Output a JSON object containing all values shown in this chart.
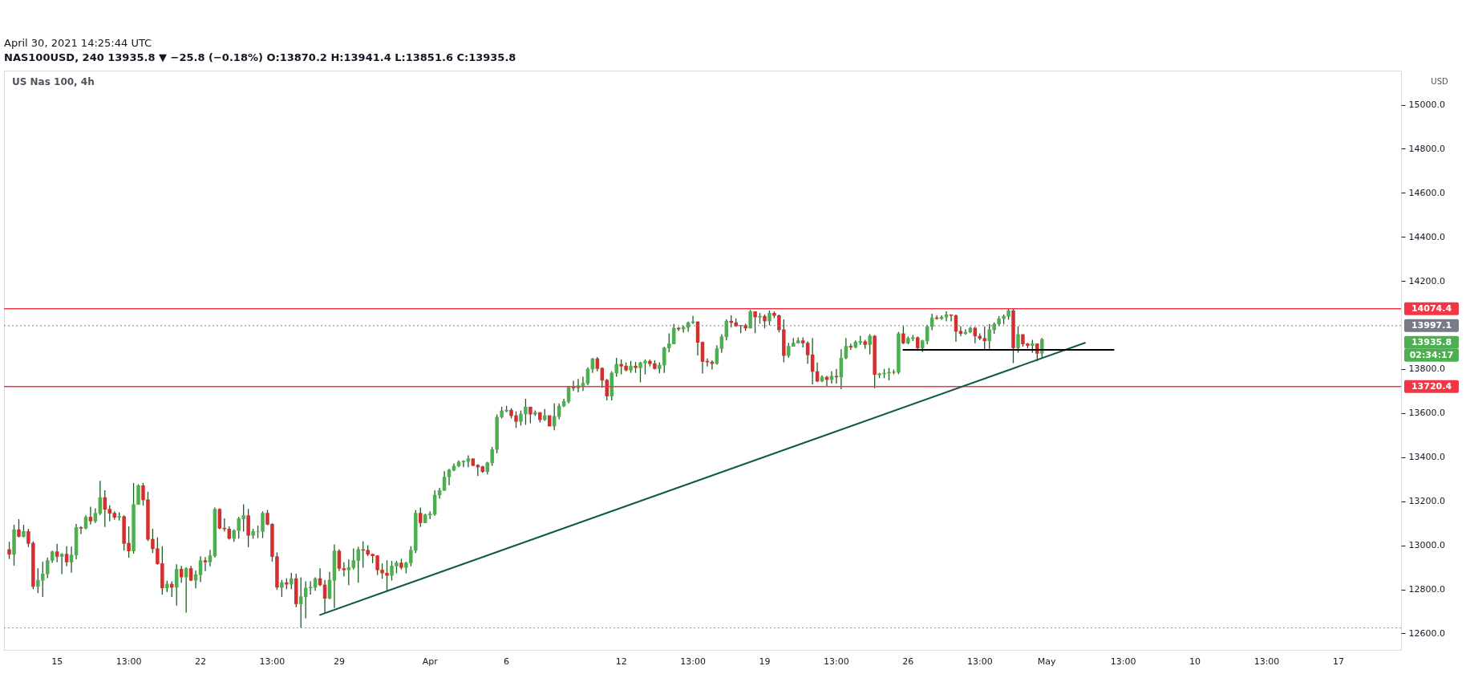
{
  "chart_data": {
    "type": "candlestick",
    "title": "US Nas 100, 4h",
    "ylabel": "USD",
    "annotations": [
      "April 30, 2021 14:25:44 UTC",
      "NAS100USD, 240  13935.8 ▼ −25.8 (−0.18%)  O:13870.2  H:13941.4  L:13851.6  C:13935.8",
      "13935.8",
      "02:34:17"
    ],
    "categories": [
      null,
      null,
      null,
      null,
      null,
      null,
      null,
      null,
      null,
      null,
      "15",
      null,
      null,
      null,
      null,
      null,
      null,
      null,
      null,
      null,
      null,
      null,
      null,
      null,
      null,
      "13:00",
      null,
      null,
      null,
      null,
      null,
      null,
      null,
      null,
      null,
      null,
      null,
      null,
      null,
      null,
      "22",
      null,
      null,
      null,
      null,
      null,
      null,
      null,
      null,
      null,
      null,
      null,
      null,
      null,
      null,
      "13:00",
      null,
      null,
      null,
      null,
      null,
      null,
      null,
      null,
      null,
      null,
      null,
      null,
      null,
      "29",
      null,
      null,
      null,
      null,
      null,
      null,
      null,
      null,
      null,
      null,
      null,
      null,
      null,
      null,
      null,
      null,
      null,
      null,
      "Apr",
      null,
      null,
      null,
      null,
      null,
      null,
      null,
      null,
      null,
      null,
      null,
      null,
      null,
      null,
      null,
      "6",
      null,
      null,
      null,
      null,
      null,
      null,
      null,
      null,
      null,
      null,
      null,
      null,
      null,
      null,
      null,
      null,
      null,
      null,
      null,
      null,
      null,
      null,
      null,
      "12",
      null,
      null,
      null,
      null,
      null,
      null,
      null,
      null,
      null,
      null,
      null,
      null,
      null,
      null,
      "13:00",
      null,
      null,
      null,
      null,
      null,
      null,
      null,
      null,
      null,
      null,
      null,
      null,
      null,
      null,
      "19",
      null,
      null,
      null,
      null,
      null,
      null,
      null,
      null,
      null,
      null,
      null,
      null,
      null,
      null,
      "13:00",
      null,
      null,
      null,
      null,
      null,
      null,
      null,
      null,
      null,
      null,
      null,
      null,
      null,
      null,
      "26",
      null,
      null,
      null,
      null,
      null,
      null,
      null,
      null,
      null,
      null,
      null,
      null,
      null,
      null,
      "13:00",
      null,
      null,
      null,
      null,
      null,
      null,
      null,
      null,
      null,
      null,
      null,
      null,
      null,
      "May",
      null,
      null,
      null,
      null,
      null,
      null,
      null,
      null,
      null,
      null,
      null,
      null,
      null,
      null,
      null,
      "13:00",
      null,
      null,
      null,
      null,
      null,
      null,
      null,
      null,
      null,
      null,
      null,
      null,
      null,
      null,
      "10",
      null,
      null,
      null,
      null,
      null,
      null,
      null,
      null,
      null,
      null,
      null,
      null,
      null,
      null,
      "13:00",
      null,
      null,
      null,
      null,
      null,
      null,
      null,
      null,
      null,
      null,
      null,
      null,
      null,
      null,
      "17",
      null,
      null,
      null,
      null,
      null,
      null,
      null,
      null,
      null,
      null,
      null,
      null
    ],
    "ohlc": [
      [
        12982,
        13016,
        12938,
        12958
      ],
      [
        12958,
        13093,
        12908,
        13072
      ],
      [
        13072,
        13119,
        13036,
        13039
      ],
      [
        13039,
        13093,
        13036,
        13064
      ],
      [
        13064,
        13075,
        12992,
        13007
      ],
      [
        13011,
        13018,
        12801,
        12812
      ],
      [
        12812,
        12896,
        12783,
        12843
      ],
      [
        12840,
        12926,
        12765,
        12871
      ],
      [
        12869,
        12944,
        12851,
        12932
      ],
      [
        12930,
        12976,
        12920,
        12972
      ],
      [
        12972,
        13007,
        12923,
        12948
      ],
      [
        12948,
        12964,
        12869,
        12961
      ],
      [
        12961,
        12996,
        12905,
        12923
      ],
      [
        12923,
        12994,
        12876,
        12957
      ],
      [
        12955,
        13097,
        12937,
        13082
      ],
      [
        13082,
        13087,
        13051,
        13076
      ],
      [
        13076,
        13136,
        13072,
        13129
      ],
      [
        13129,
        13175,
        13094,
        13109
      ],
      [
        13109,
        13168,
        13101,
        13147
      ],
      [
        13144,
        13293,
        13137,
        13218
      ],
      [
        13218,
        13250,
        13083,
        13162
      ],
      [
        13165,
        13182,
        13109,
        13144
      ],
      [
        13147,
        13154,
        13116,
        13126
      ],
      [
        13126,
        13150,
        13112,
        13132
      ],
      [
        13132,
        13136,
        12976,
        13007
      ],
      [
        13011,
        13086,
        12944,
        12973
      ],
      [
        12973,
        13283,
        12962,
        13186
      ],
      [
        13184,
        13277,
        13184,
        13272
      ],
      [
        13272,
        13283,
        13180,
        13205
      ],
      [
        13208,
        13243,
        13019,
        13026
      ],
      [
        13029,
        13075,
        12965,
        12983
      ],
      [
        12986,
        13036,
        12912,
        12915
      ],
      [
        12918,
        12996,
        12776,
        12805
      ],
      [
        12805,
        12839,
        12787,
        12825
      ],
      [
        12825,
        12836,
        12765,
        12808
      ],
      [
        12808,
        12914,
        12726,
        12893
      ],
      [
        12893,
        12907,
        12830,
        12855
      ],
      [
        12855,
        12900,
        12694,
        12896
      ],
      [
        12896,
        12907,
        12837,
        12840
      ],
      [
        12840,
        12886,
        12805,
        12868
      ],
      [
        12865,
        12950,
        12833,
        12932
      ],
      [
        12932,
        12947,
        12883,
        12923
      ],
      [
        12923,
        12979,
        12905,
        12954
      ],
      [
        12951,
        13172,
        12944,
        13165
      ],
      [
        13165,
        13168,
        13073,
        13076
      ],
      [
        13079,
        13122,
        13062,
        13073
      ],
      [
        13075,
        13086,
        13026,
        13030
      ],
      [
        13030,
        13072,
        13016,
        13068
      ],
      [
        13066,
        13129,
        13030,
        13122
      ],
      [
        13119,
        13186,
        13062,
        13136
      ],
      [
        13136,
        13165,
        12991,
        13044
      ],
      [
        13044,
        13075,
        13030,
        13064
      ],
      [
        13062,
        13089,
        13033,
        13064
      ],
      [
        13062,
        13154,
        13033,
        13147
      ],
      [
        13147,
        13161,
        13091,
        13094
      ],
      [
        13097,
        13100,
        12926,
        12948
      ],
      [
        12950,
        12968,
        12797,
        12808
      ],
      [
        12808,
        12843,
        12765,
        12832
      ],
      [
        12832,
        12850,
        12801,
        12822
      ],
      [
        12822,
        12875,
        12801,
        12850
      ],
      [
        12850,
        12871,
        12719,
        12733
      ],
      [
        12733,
        12855,
        12625,
        12768
      ],
      [
        12765,
        12836,
        12669,
        12807
      ],
      [
        12805,
        12836,
        12776,
        12811
      ],
      [
        12808,
        12855,
        12794,
        12850
      ],
      [
        12850,
        12896,
        12815,
        12819
      ],
      [
        12821,
        12843,
        12694,
        12758
      ],
      [
        12758,
        12879,
        12755,
        12843
      ],
      [
        12840,
        13004,
        12715,
        12975
      ],
      [
        12975,
        12982,
        12883,
        12894
      ],
      [
        12896,
        12923,
        12858,
        12887
      ],
      [
        12887,
        12936,
        12819,
        12900
      ],
      [
        12898,
        12986,
        12890,
        12932
      ],
      [
        12930,
        12993,
        12830,
        12982
      ],
      [
        12982,
        13018,
        12898,
        12976
      ],
      [
        12979,
        13000,
        12951,
        12958
      ],
      [
        12961,
        12961,
        12919,
        12951
      ],
      [
        12954,
        12954,
        12865,
        12887
      ],
      [
        12889,
        12918,
        12848,
        12873
      ],
      [
        12875,
        12932,
        12790,
        12862
      ],
      [
        12862,
        12929,
        12840,
        12907
      ],
      [
        12905,
        12929,
        12873,
        12921
      ],
      [
        12921,
        12939,
        12890,
        12898
      ],
      [
        12898,
        12925,
        12873,
        12921
      ],
      [
        12919,
        12996,
        12905,
        12979
      ],
      [
        12976,
        13161,
        12965,
        13147
      ],
      [
        13147,
        13172,
        13083,
        13101
      ],
      [
        13101,
        13143,
        13101,
        13140
      ],
      [
        13136,
        13154,
        13119,
        13143
      ],
      [
        13140,
        13250,
        13134,
        13229
      ],
      [
        13227,
        13261,
        13212,
        13250
      ],
      [
        13248,
        13336,
        13248,
        13311
      ],
      [
        13309,
        13347,
        13273,
        13343
      ],
      [
        13340,
        13372,
        13336,
        13361
      ],
      [
        13359,
        13386,
        13355,
        13379
      ],
      [
        13377,
        13386,
        13355,
        13383
      ],
      [
        13380,
        13408,
        13355,
        13394
      ],
      [
        13394,
        13394,
        13359,
        13361
      ],
      [
        13365,
        13368,
        13315,
        13354
      ],
      [
        13358,
        13361,
        13329,
        13333
      ],
      [
        13333,
        13379,
        13322,
        13376
      ],
      [
        13373,
        13447,
        13361,
        13436
      ],
      [
        13434,
        13594,
        13418,
        13583
      ],
      [
        13581,
        13629,
        13576,
        13612
      ],
      [
        13608,
        13633,
        13604,
        13615
      ],
      [
        13615,
        13622,
        13576,
        13587
      ],
      [
        13590,
        13608,
        13533,
        13561
      ],
      [
        13561,
        13612,
        13544,
        13597
      ],
      [
        13595,
        13665,
        13547,
        13629
      ],
      [
        13629,
        13629,
        13554,
        13594
      ],
      [
        13594,
        13612,
        13587,
        13604
      ],
      [
        13604,
        13604,
        13558,
        13569
      ],
      [
        13569,
        13619,
        13565,
        13590
      ],
      [
        13590,
        13590,
        13540,
        13540
      ],
      [
        13540,
        13644,
        13522,
        13587
      ],
      [
        13583,
        13644,
        13572,
        13633
      ],
      [
        13631,
        13665,
        13628,
        13654
      ],
      [
        13652,
        13722,
        13644,
        13719
      ],
      [
        13719,
        13747,
        13701,
        13713
      ],
      [
        13713,
        13755,
        13694,
        13726
      ],
      [
        13724,
        13765,
        13701,
        13737
      ],
      [
        13734,
        13808,
        13727,
        13801
      ],
      [
        13799,
        13851,
        13783,
        13848
      ],
      [
        13848,
        13855,
        13790,
        13801
      ],
      [
        13805,
        13808,
        13715,
        13748
      ],
      [
        13751,
        13755,
        13658,
        13676
      ],
      [
        13676,
        13790,
        13658,
        13783
      ],
      [
        13781,
        13851,
        13765,
        13823
      ],
      [
        13823,
        13844,
        13776,
        13812
      ],
      [
        13815,
        13830,
        13790,
        13794
      ],
      [
        13794,
        13837,
        13783,
        13815
      ],
      [
        13815,
        13833,
        13783,
        13805
      ],
      [
        13805,
        13833,
        13740,
        13830
      ],
      [
        13827,
        13844,
        13776,
        13837
      ],
      [
        13837,
        13844,
        13812,
        13823
      ],
      [
        13826,
        13840,
        13798,
        13801
      ],
      [
        13801,
        13830,
        13781,
        13819
      ],
      [
        13817,
        13901,
        13783,
        13898
      ],
      [
        13895,
        13962,
        13876,
        13916
      ],
      [
        13913,
        14005,
        13913,
        13987
      ],
      [
        13987,
        13991,
        13973,
        13981
      ],
      [
        13981,
        13998,
        13966,
        13991
      ],
      [
        13988,
        14016,
        13969,
        14012
      ],
      [
        14010,
        14041,
        14005,
        14016
      ],
      [
        14016,
        14016,
        13862,
        13920
      ],
      [
        13923,
        13926,
        13780,
        13833
      ],
      [
        13837,
        13848,
        13812,
        13831
      ],
      [
        13833,
        13840,
        13798,
        13824
      ],
      [
        13824,
        13908,
        13820,
        13894
      ],
      [
        13892,
        13958,
        13874,
        13948
      ],
      [
        13945,
        14026,
        13930,
        14019
      ],
      [
        14019,
        14044,
        13988,
        14010
      ],
      [
        14012,
        14030,
        13992,
        13995
      ],
      [
        13999,
        13999,
        13963,
        13995
      ],
      [
        13999,
        14006,
        13974,
        13985
      ],
      [
        13985,
        14069,
        13985,
        14062
      ],
      [
        14062,
        14062,
        13963,
        14035
      ],
      [
        14035,
        14055,
        14006,
        14041
      ],
      [
        14041,
        14048,
        13985,
        14017
      ],
      [
        14017,
        14066,
        13999,
        14055
      ],
      [
        14055,
        14062,
        14031,
        14042
      ],
      [
        14044,
        14048,
        13967,
        13977
      ],
      [
        13980,
        14026,
        13831,
        13860
      ],
      [
        13860,
        13919,
        13852,
        13905
      ],
      [
        13902,
        13941,
        13902,
        13919
      ],
      [
        13917,
        13944,
        13916,
        13930
      ],
      [
        13930,
        13944,
        13898,
        13917
      ],
      [
        13919,
        13926,
        13824,
        13863
      ],
      [
        13866,
        13941,
        13731,
        13788
      ],
      [
        13790,
        13830,
        13741,
        13744
      ],
      [
        13744,
        13772,
        13741,
        13765
      ],
      [
        13765,
        13769,
        13720,
        13751
      ],
      [
        13751,
        13790,
        13734,
        13769
      ],
      [
        13769,
        13801,
        13734,
        13763
      ],
      [
        13763,
        13890,
        13709,
        13851
      ],
      [
        13849,
        13941,
        13845,
        13905
      ],
      [
        13905,
        13916,
        13887,
        13898
      ],
      [
        13898,
        13930,
        13894,
        13924
      ],
      [
        13920,
        13951,
        13910,
        13927
      ],
      [
        13926,
        13933,
        13892,
        13910
      ],
      [
        13910,
        13958,
        13867,
        13951
      ],
      [
        13951,
        13955,
        13713,
        13774
      ],
      [
        13772,
        13783,
        13759,
        13780
      ],
      [
        13777,
        13801,
        13759,
        13783
      ],
      [
        13781,
        13805,
        13749,
        13787
      ],
      [
        13787,
        13798,
        13776,
        13784
      ],
      [
        13784,
        13969,
        13777,
        13962
      ],
      [
        13962,
        13995,
        13913,
        13917
      ],
      [
        13917,
        13948,
        13913,
        13941
      ],
      [
        13937,
        13955,
        13927,
        13944
      ],
      [
        13944,
        13948,
        13883,
        13895
      ],
      [
        13895,
        13933,
        13877,
        13930
      ],
      [
        13927,
        14001,
        13913,
        13994
      ],
      [
        13992,
        14051,
        13977,
        14034
      ],
      [
        14034,
        14044,
        14024,
        14028
      ],
      [
        14028,
        14044,
        14024,
        14037
      ],
      [
        14035,
        14062,
        14017,
        14048
      ],
      [
        14048,
        14048,
        14017,
        14042
      ],
      [
        14044,
        14048,
        13924,
        13970
      ],
      [
        13973,
        13995,
        13949,
        13960
      ],
      [
        13960,
        13980,
        13956,
        13969
      ],
      [
        13967,
        13992,
        13963,
        13987
      ],
      [
        13987,
        13992,
        13917,
        13949
      ],
      [
        13951,
        13962,
        13931,
        13938
      ],
      [
        13941,
        13994,
        13888,
        13927
      ],
      [
        13927,
        14005,
        13892,
        13980
      ],
      [
        13977,
        14012,
        13960,
        14005
      ],
      [
        14003,
        14041,
        13995,
        14030
      ],
      [
        14028,
        14048,
        14003,
        14041
      ],
      [
        14038,
        14074,
        14024,
        14066
      ],
      [
        14066,
        14073,
        13827,
        13895
      ],
      [
        13895,
        13994,
        13874,
        13958
      ],
      [
        13958,
        13958,
        13902,
        13913
      ],
      [
        13916,
        13919,
        13895,
        13906
      ],
      [
        13906,
        13933,
        13874,
        13916
      ],
      [
        13916,
        13916,
        13835,
        13870
      ],
      [
        13870.2,
        13941.4,
        13851.6,
        13935.8
      ],
      null,
      null,
      null,
      null,
      null,
      null,
      null,
      null,
      null,
      null,
      null,
      null,
      null,
      null,
      null,
      null,
      null,
      null,
      null,
      null,
      null,
      null,
      null,
      null,
      null,
      null,
      null,
      null,
      null,
      null,
      null,
      null,
      null,
      null,
      null,
      null,
      null,
      null,
      null,
      null,
      null,
      null,
      null,
      null,
      null,
      null,
      null,
      null,
      null,
      null,
      null,
      null,
      null,
      null,
      null,
      null,
      null,
      null,
      null,
      null,
      null,
      null,
      null,
      null,
      null,
      null,
      null,
      null,
      null,
      null,
      null,
      null,
      null,
      null
    ],
    "series": [
      {
        "type": "line",
        "color": "#0f5a4a",
        "values": [
          null,
          null,
          null,
          null,
          null,
          null,
          null,
          null,
          null,
          null,
          null,
          null,
          null,
          null,
          null,
          null,
          null,
          null,
          null,
          null,
          null,
          null,
          null,
          null,
          null,
          null,
          null,
          null,
          null,
          null,
          null,
          null,
          null,
          null,
          null,
          null,
          null,
          null,
          null,
          null,
          null,
          null,
          null,
          null,
          null,
          null,
          null,
          null,
          null,
          null,
          null,
          null,
          null,
          null,
          null,
          null,
          null,
          null,
          null,
          null,
          null,
          null,
          null,
          null,
          null,
          12684,
          null,
          null,
          null,
          null,
          null,
          null,
          null,
          null,
          null,
          null,
          null,
          null,
          null,
          null,
          null,
          null,
          null,
          null,
          null,
          null,
          null,
          null,
          null,
          null,
          null,
          null,
          null,
          null,
          null,
          null,
          null,
          null,
          null,
          null,
          null,
          null,
          null,
          null,
          null,
          null,
          null,
          null,
          null,
          null,
          null,
          null,
          null,
          null,
          null,
          null,
          null,
          null,
          null,
          null,
          null,
          null,
          null,
          null,
          null,
          null,
          null,
          null,
          null,
          null,
          null,
          null,
          null,
          null,
          null,
          null,
          null,
          null,
          null,
          null,
          null,
          null,
          null,
          null,
          null,
          null,
          null,
          null,
          null,
          null,
          null,
          null,
          null,
          null,
          null,
          null,
          null,
          null,
          null,
          null,
          null,
          null,
          null,
          null,
          null,
          null,
          null,
          null,
          null,
          null,
          null,
          null,
          null,
          null,
          null,
          null,
          null,
          null,
          null,
          null,
          null,
          null,
          null,
          null,
          null,
          null,
          null,
          null,
          null,
          null,
          null,
          null,
          null,
          null,
          null,
          null,
          null,
          null,
          null,
          null,
          null,
          null,
          null,
          null,
          null,
          null,
          null,
          null,
          null,
          null,
          null,
          null,
          null,
          null,
          null,
          null,
          null,
          null,
          null,
          null,
          null,
          null,
          null,
          null,
          null,
          13919,
          null,
          null,
          null,
          null,
          null,
          null,
          null,
          null,
          null,
          null,
          null,
          null,
          null,
          null,
          null,
          null,
          null,
          null,
          null,
          null,
          null,
          null,
          null,
          null,
          null,
          null,
          null,
          null,
          null,
          null,
          null,
          null,
          null,
          null,
          null,
          null,
          null,
          null,
          null,
          null,
          null,
          null,
          null,
          null,
          null,
          null,
          null,
          null,
          null,
          null,
          null,
          null,
          null,
          null,
          null,
          null,
          null,
          null,
          null,
          null,
          null,
          null,
          null,
          null,
          null
        ]
      },
      {
        "type": "line",
        "color": "#000000",
        "values": [
          null,
          null,
          null,
          null,
          null,
          null,
          null,
          null,
          null,
          null,
          null,
          null,
          null,
          null,
          null,
          null,
          null,
          null,
          null,
          null,
          null,
          null,
          null,
          null,
          null,
          null,
          null,
          null,
          null,
          null,
          null,
          null,
          null,
          null,
          null,
          null,
          null,
          null,
          null,
          null,
          null,
          null,
          null,
          null,
          null,
          null,
          null,
          null,
          null,
          null,
          null,
          null,
          null,
          null,
          null,
          null,
          null,
          null,
          null,
          null,
          null,
          null,
          null,
          null,
          null,
          null,
          null,
          null,
          null,
          null,
          null,
          null,
          null,
          null,
          null,
          null,
          null,
          null,
          null,
          null,
          null,
          null,
          null,
          null,
          null,
          null,
          null,
          null,
          null,
          null,
          null,
          null,
          null,
          null,
          null,
          null,
          null,
          null,
          null,
          null,
          null,
          null,
          null,
          null,
          null,
          null,
          null,
          null,
          null,
          null,
          null,
          null,
          null,
          null,
          null,
          null,
          null,
          null,
          null,
          null,
          null,
          null,
          null,
          null,
          null,
          null,
          null,
          null,
          null,
          null,
          null,
          null,
          null,
          null,
          null,
          null,
          null,
          null,
          null,
          null,
          null,
          null,
          null,
          null,
          null,
          null,
          null,
          null,
          null,
          null,
          null,
          null,
          null,
          null,
          null,
          null,
          null,
          null,
          null,
          null,
          null,
          null,
          null,
          null,
          null,
          null,
          null,
          null,
          null,
          null,
          null,
          null,
          null,
          null,
          null,
          null,
          null,
          null,
          null,
          null,
          null,
          null,
          null,
          null,
          null,
          null,
          null,
          13887,
          null,
          null,
          null,
          null,
          null,
          null,
          null,
          null,
          null,
          null,
          null,
          null,
          null,
          null,
          null,
          null,
          null,
          null,
          null,
          null,
          null,
          null,
          null,
          null,
          null,
          null,
          null,
          null,
          null,
          null,
          null,
          null,
          null,
          null,
          null,
          null,
          null,
          null,
          null,
          null,
          null,
          null,
          null,
          13887,
          null,
          null,
          null,
          null,
          null,
          null,
          null,
          null,
          null,
          null,
          null,
          null,
          null,
          null,
          null,
          null,
          null,
          null,
          null,
          null,
          null,
          null,
          null,
          null,
          null,
          null,
          null,
          null,
          null,
          null,
          null,
          null,
          null,
          null,
          null,
          null,
          null,
          null,
          null,
          null,
          null,
          null,
          null,
          null,
          null,
          null,
          null,
          null,
          null,
          null,
          null,
          null,
          null,
          null,
          null,
          null,
          null,
          null,
          null
        ]
      }
    ],
    "ref_lines": [
      {
        "axis": "y",
        "value": 14074.4,
        "label": "14074.4",
        "color": "#f23645",
        "line_style": "solid"
      },
      {
        "axis": "y",
        "value": 13720.4,
        "label": "13720.4",
        "color": "#f23645",
        "line_style": "solid"
      },
      {
        "axis": "y",
        "value": 13997.1,
        "label": "13997.1",
        "color": "#787b86",
        "line_style": "dotted"
      },
      {
        "axis": "y",
        "value": 12625,
        "color": "#9598a1",
        "line_style": "dotted"
      }
    ],
    "ylim": [
      12525,
      15155
    ],
    "yticks": [
      {
        "value": 12600,
        "label": "12600.0"
      },
      {
        "value": 12800,
        "label": "12800.0"
      },
      {
        "value": 13000,
        "label": "13000.0"
      },
      {
        "value": 13200,
        "label": "13200.0"
      },
      {
        "value": 13400,
        "label": "13400.0"
      },
      {
        "value": 13600,
        "label": "13600.0"
      },
      {
        "value": 13800,
        "label": "13800.0"
      },
      {
        "value": 14200,
        "label": "14200.0"
      },
      {
        "value": 14400,
        "label": "14400.0"
      },
      {
        "value": 14600,
        "label": "14600.0"
      },
      {
        "value": 14800,
        "label": "14800.0"
      },
      {
        "value": 15000,
        "label": "15000.0"
      }
    ],
    "grid": false
  }
}
